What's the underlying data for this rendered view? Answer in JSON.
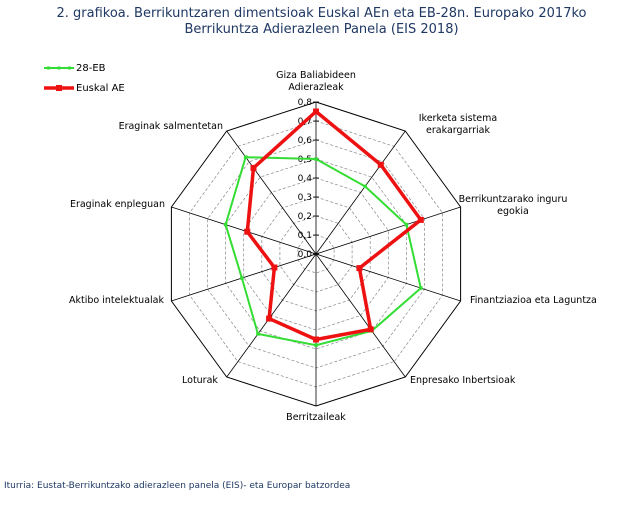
{
  "title_line1": "2. grafikoa. Berrikuntzaren dimentsioak Euskal AEn eta EB-28n. Europako 2017ko",
  "title_line2": "Berrikuntza Adierazleen Panela (EIS 2018)",
  "source": "Iturria: Eustat-Berrikuntzako adierazleen panela (EIS)- eta Europar batzordea",
  "chart_data": {
    "type": "radar",
    "categories": [
      [
        "Giza Baliabideen",
        "Adierazleak"
      ],
      [
        "Ikerketa sistema",
        "erakargarriak"
      ],
      [
        "Berrikuntzarako inguru",
        "egokia"
      ],
      [
        "Finantziazioa eta Laguntza"
      ],
      [
        "Enpresako Inbertsioak"
      ],
      [
        "Berritzaileak"
      ],
      [
        "Loturak"
      ],
      [
        "Aktibo intelektualak"
      ],
      [
        "Eraginak enpleguan"
      ],
      [
        "Eraginak salmentetan"
      ]
    ],
    "rlim": [
      0,
      0.8
    ],
    "ticks": [
      "0,0",
      "0,1",
      "0,2",
      "0,3",
      "0,4",
      "0,5",
      "0,6",
      "0,7",
      "0,8"
    ],
    "series": [
      {
        "name": "28-EB",
        "color": "#33dd33",
        "values": [
          0.5,
          0.44,
          0.5,
          0.58,
          0.5,
          0.48,
          0.52,
          0.41,
          0.5,
          0.63
        ]
      },
      {
        "name": "Euskal AE",
        "color": "#ee1111",
        "values": [
          0.75,
          0.58,
          0.58,
          0.24,
          0.49,
          0.45,
          0.42,
          0.23,
          0.38,
          0.56
        ]
      }
    ],
    "legend_position": "top-left",
    "grid": true
  }
}
